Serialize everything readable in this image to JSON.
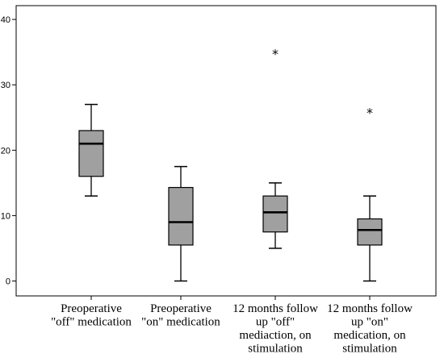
{
  "chart_data": {
    "type": "boxplot",
    "ylim": [
      -2.5,
      42
    ],
    "yticks": [
      "0",
      "10",
      "20",
      "30",
      "40"
    ],
    "grid": false,
    "box_color": "#a0a0a0",
    "categories": [
      {
        "lines": [
          "Preoperative",
          "\"off\" medication"
        ]
      },
      {
        "lines": [
          "Preoperative",
          "\"on\" medication"
        ]
      },
      {
        "lines": [
          "12 months follow",
          "up  \"off\"",
          "mediaction, on",
          "stimulation"
        ]
      },
      {
        "lines": [
          "12 months follow",
          "up \"on\"",
          "medication, on",
          "stimulation"
        ]
      }
    ],
    "boxes": [
      {
        "whisker_low": 13,
        "q1": 16,
        "median": 21,
        "q3": 23,
        "whisker_high": 27,
        "outliers": []
      },
      {
        "whisker_low": 0,
        "q1": 5.5,
        "median": 9,
        "q3": 14.3,
        "whisker_high": 17.5,
        "outliers": []
      },
      {
        "whisker_low": 5,
        "q1": 7.5,
        "median": 10.5,
        "q3": 13,
        "whisker_high": 15,
        "outliers": [
          35
        ]
      },
      {
        "whisker_low": 0,
        "q1": 5.5,
        "median": 7.8,
        "q3": 9.5,
        "whisker_high": 13,
        "outliers": [
          26
        ]
      }
    ],
    "outlier_marker": "*"
  }
}
